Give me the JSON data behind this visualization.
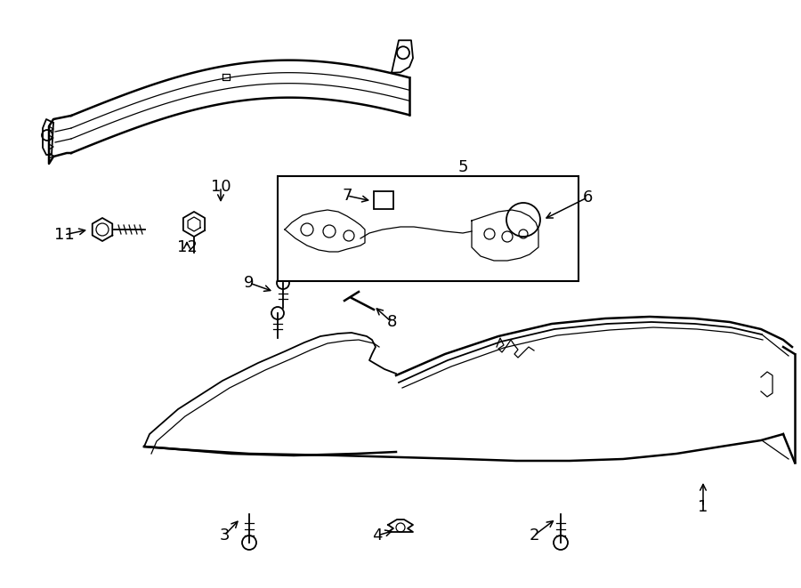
{
  "background_color": "#ffffff",
  "line_color": "#000000",
  "label_color": "#000000",
  "figsize": [
    9.0,
    6.61
  ],
  "dpi": 100
}
